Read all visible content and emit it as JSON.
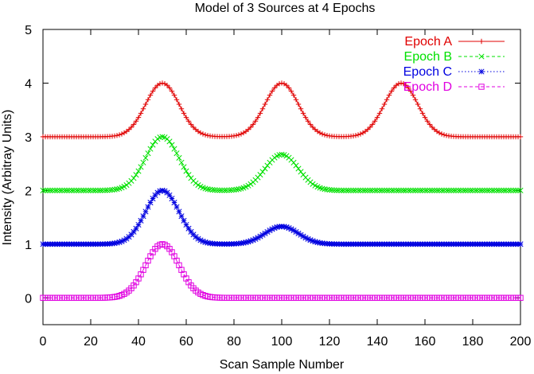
{
  "chart_data": {
    "type": "line",
    "title": "Model of 3 Sources at 4 Epochs",
    "xlabel": "Scan Sample Number",
    "ylabel": "Intensity (Arbitray Units)",
    "xlim": [
      0,
      200
    ],
    "ylim": [
      -0.5,
      5
    ],
    "x_ticks": [
      "0",
      "20",
      "40",
      "60",
      "80",
      "100",
      "120",
      "140",
      "160",
      "180",
      "200"
    ],
    "y_ticks": [
      "0",
      "1",
      "2",
      "3",
      "4",
      "5"
    ],
    "grid": false,
    "legend_position": "top-right",
    "x_step": 1,
    "sigma": 7,
    "series": [
      {
        "name": "Epoch A",
        "color": "#e00000",
        "marker": "plus",
        "line_style": "solid",
        "baseline": 3,
        "peaks": [
          {
            "center": 50,
            "amplitude": 1.0
          },
          {
            "center": 100,
            "amplitude": 1.0
          },
          {
            "center": 150,
            "amplitude": 1.0
          }
        ]
      },
      {
        "name": "Epoch B",
        "color": "#00e000",
        "marker": "cross",
        "line_style": "dashed",
        "baseline": 2,
        "peaks": [
          {
            "center": 50,
            "amplitude": 1.0
          },
          {
            "center": 100,
            "amplitude": 0.67
          }
        ]
      },
      {
        "name": "Epoch C",
        "color": "#0000e0",
        "marker": "star",
        "line_style": "dotted",
        "baseline": 1,
        "peaks": [
          {
            "center": 50,
            "amplitude": 1.0
          },
          {
            "center": 100,
            "amplitude": 0.33
          }
        ]
      },
      {
        "name": "Epoch D",
        "color": "#e000e0",
        "marker": "square",
        "line_style": "dashed",
        "baseline": 0,
        "peaks": [
          {
            "center": 50,
            "amplitude": 1.0
          }
        ]
      }
    ]
  }
}
